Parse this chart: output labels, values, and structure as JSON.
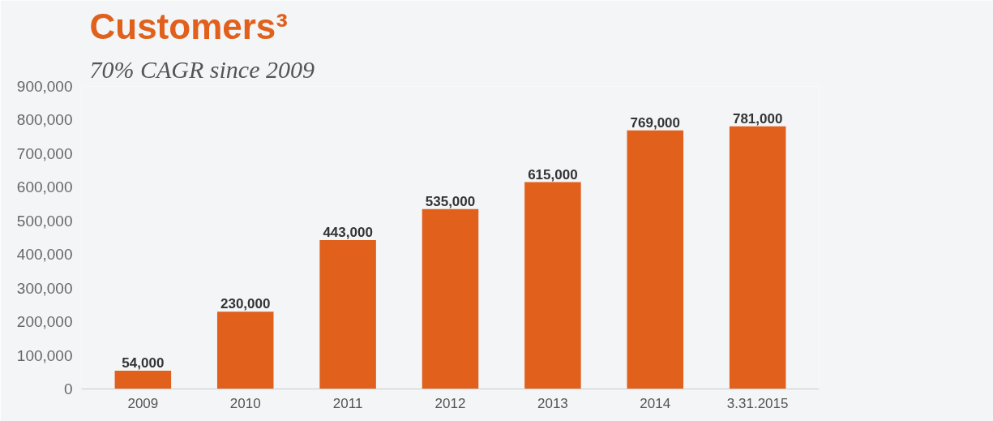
{
  "chart_data": {
    "type": "bar",
    "title": "Customers³",
    "subtitle": "70% CAGR since 2009",
    "categories": [
      "2009",
      "2010",
      "2011",
      "2012",
      "2013",
      "2014",
      "3.31.2015"
    ],
    "values": [
      54000,
      230000,
      443000,
      535000,
      615000,
      769000,
      781000
    ],
    "color": "#e0601c",
    "ylim": [
      0,
      900000
    ],
    "yticks": [
      {
        "value": 0,
        "label": "0"
      },
      {
        "value": 100000,
        "label": "100,000"
      },
      {
        "value": 200000,
        "label": "200,000"
      },
      {
        "value": 300000,
        "label": "300,000"
      },
      {
        "value": 400000,
        "label": "400,000"
      },
      {
        "value": 500000,
        "label": "500,000"
      },
      {
        "value": 600000,
        "label": "600,000"
      },
      {
        "value": 700000,
        "label": "700,000"
      },
      {
        "value": 800000,
        "label": "800,000"
      },
      {
        "value": 900000,
        "label": "900,000"
      }
    ],
    "value_labels": [
      "54,000",
      "230,000",
      "443,000",
      "535,000",
      "615,000",
      "769,000",
      "781,000"
    ],
    "grid": false
  }
}
